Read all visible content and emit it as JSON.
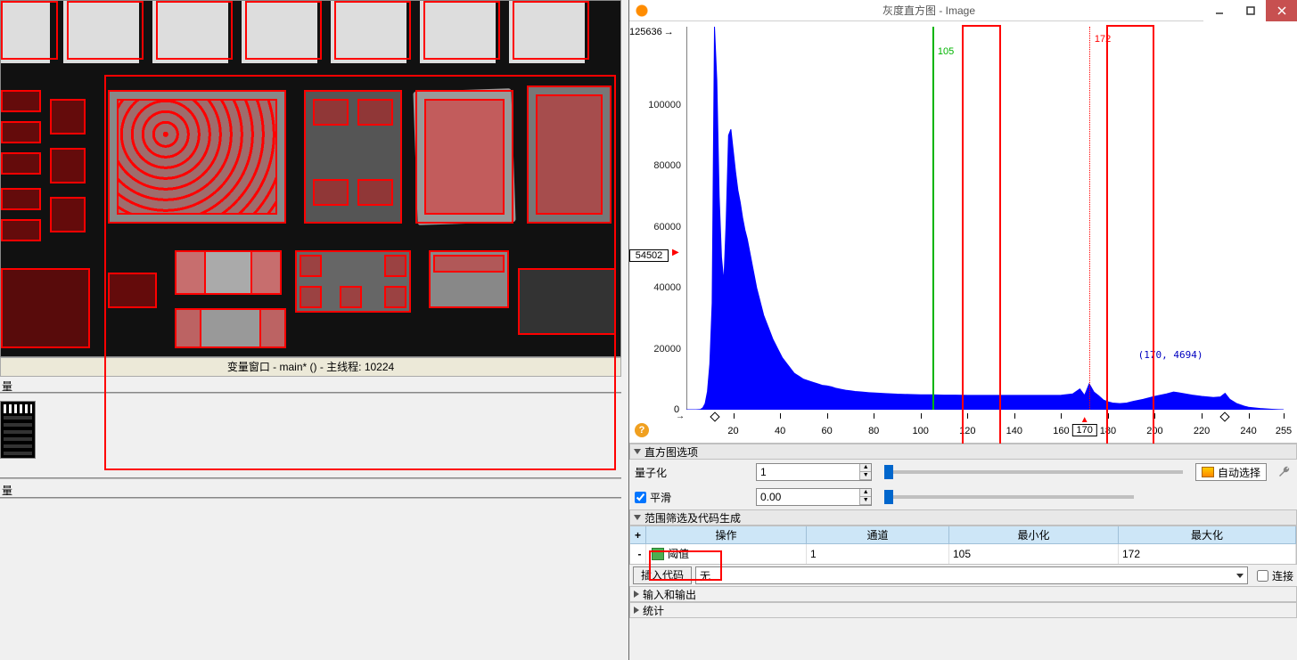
{
  "left": {
    "variable_window_title": "变量窗口 - main* () - 主线程: 10224",
    "quant_label_short": "量"
  },
  "right": {
    "titlebar": {
      "title": "灰度直方图 - Image"
    },
    "chart": {
      "type": "histogram",
      "xlim": [
        0,
        255
      ],
      "ylim": [
        0,
        125636
      ],
      "y_cursor": 54502,
      "x_cursor": 170,
      "threshold_low": 105,
      "threshold_high": 172,
      "cursor_coord": "(170, 4694)",
      "y_max_label": "125636",
      "zero_label": "0",
      "x_ticks": [
        20,
        40,
        60,
        80,
        100,
        120,
        140,
        160,
        180,
        200,
        220,
        240,
        255
      ],
      "y_ticks": [
        0,
        20000,
        40000,
        60000,
        80000,
        100000
      ],
      "range_markers": [
        12,
        230
      ],
      "bar_color": "#0000ff",
      "background_color": "#ffffff",
      "green_line_color": "#00b400",
      "red_line_color": "#ff0000",
      "data": [
        [
          0,
          0
        ],
        [
          1,
          0
        ],
        [
          2,
          0
        ],
        [
          3,
          0
        ],
        [
          4,
          0
        ],
        [
          5,
          50
        ],
        [
          6,
          100
        ],
        [
          7,
          600
        ],
        [
          8,
          2000
        ],
        [
          9,
          6000
        ],
        [
          10,
          15000
        ],
        [
          11,
          35000
        ],
        [
          12,
          125636
        ],
        [
          13,
          108000
        ],
        [
          14,
          70000
        ],
        [
          15,
          50000
        ],
        [
          16,
          42000
        ],
        [
          17,
          62000
        ],
        [
          18,
          90000
        ],
        [
          19,
          92000
        ],
        [
          20,
          85000
        ],
        [
          21,
          78000
        ],
        [
          22,
          72000
        ],
        [
          23,
          68000
        ],
        [
          24,
          63000
        ],
        [
          25,
          59000
        ],
        [
          26,
          56000
        ],
        [
          27,
          52000
        ],
        [
          28,
          48000
        ],
        [
          29,
          44000
        ],
        [
          30,
          40000
        ],
        [
          31,
          37000
        ],
        [
          32,
          34000
        ],
        [
          33,
          31000
        ],
        [
          34,
          29000
        ],
        [
          35,
          27000
        ],
        [
          36,
          25000
        ],
        [
          37,
          23000
        ],
        [
          38,
          21500
        ],
        [
          39,
          20000
        ],
        [
          40,
          18500
        ],
        [
          41,
          17000
        ],
        [
          42,
          16000
        ],
        [
          43,
          15000
        ],
        [
          44,
          14000
        ],
        [
          45,
          13000
        ],
        [
          46,
          12000
        ],
        [
          47,
          11500
        ],
        [
          48,
          11000
        ],
        [
          49,
          10500
        ],
        [
          50,
          10000
        ],
        [
          52,
          9500
        ],
        [
          54,
          9000
        ],
        [
          56,
          8500
        ],
        [
          58,
          8000
        ],
        [
          60,
          7800
        ],
        [
          62,
          7500
        ],
        [
          64,
          7000
        ],
        [
          66,
          6700
        ],
        [
          68,
          6400
        ],
        [
          70,
          6200
        ],
        [
          72,
          6000
        ],
        [
          75,
          5800
        ],
        [
          78,
          5600
        ],
        [
          80,
          5500
        ],
        [
          85,
          5300
        ],
        [
          90,
          5100
        ],
        [
          95,
          5000
        ],
        [
          100,
          4900
        ],
        [
          105,
          4900
        ],
        [
          110,
          4800
        ],
        [
          115,
          4800
        ],
        [
          120,
          4700
        ],
        [
          125,
          4700
        ],
        [
          130,
          4700
        ],
        [
          135,
          4700
        ],
        [
          140,
          4700
        ],
        [
          145,
          4700
        ],
        [
          150,
          4700
        ],
        [
          155,
          4700
        ],
        [
          160,
          4750
        ],
        [
          165,
          5200
        ],
        [
          168,
          6800
        ],
        [
          170,
          4694
        ],
        [
          172,
          8500
        ],
        [
          174,
          5800
        ],
        [
          176,
          4600
        ],
        [
          178,
          3200
        ],
        [
          180,
          2600
        ],
        [
          182,
          2200
        ],
        [
          185,
          2000
        ],
        [
          188,
          2200
        ],
        [
          190,
          2600
        ],
        [
          195,
          3400
        ],
        [
          200,
          4400
        ],
        [
          205,
          5200
        ],
        [
          208,
          5800
        ],
        [
          210,
          5600
        ],
        [
          213,
          5200
        ],
        [
          216,
          4800
        ],
        [
          220,
          4400
        ],
        [
          225,
          4000
        ],
        [
          228,
          4200
        ],
        [
          230,
          5400
        ],
        [
          232,
          3400
        ],
        [
          235,
          2000
        ],
        [
          238,
          1200
        ],
        [
          240,
          800
        ],
        [
          245,
          400
        ],
        [
          250,
          150
        ],
        [
          253,
          50
        ],
        [
          255,
          0
        ]
      ]
    },
    "options": {
      "section_title": "直方图选项",
      "quantization_label": "量子化",
      "quantization_value": "1",
      "smooth_label": "平滑",
      "smooth_checked": true,
      "smooth_value": "0.00",
      "auto_select_label": "自动选择"
    },
    "filter": {
      "section_title": "范围筛选及代码生成",
      "columns": {
        "op": "操作",
        "channel": "通道",
        "min": "最小化",
        "max": "最大化"
      },
      "rows": [
        {
          "op_label": "阈值",
          "channel": "1",
          "min": "105",
          "max": "172"
        }
      ],
      "insert_code_label": "插入代码",
      "lang_selected": "无",
      "connect_label": "连接",
      "connect_checked": false
    },
    "sections": {
      "io": "输入和输出",
      "stats": "统计"
    }
  }
}
